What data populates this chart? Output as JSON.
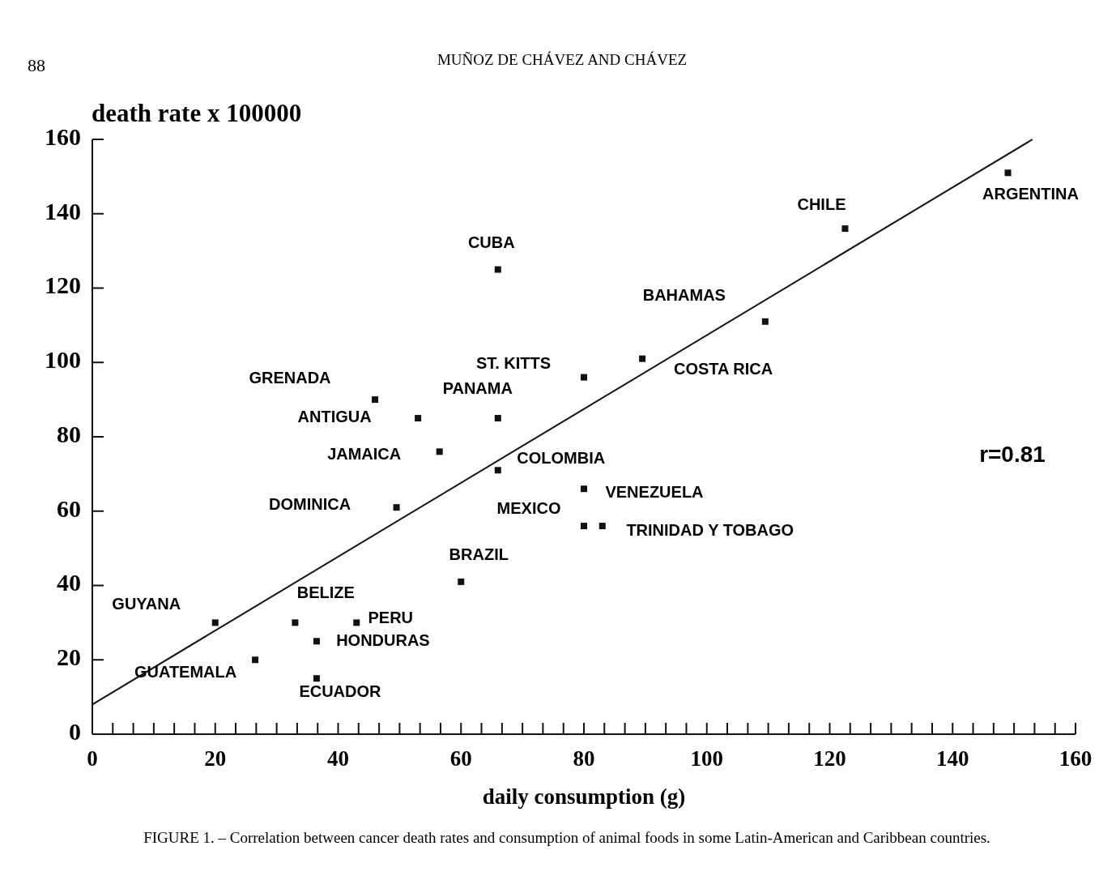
{
  "chart_data": {
    "type": "scatter",
    "xlabel": "daily consumption (g)",
    "ylabel": "death rate x 100000",
    "marker": "square",
    "xlim": [
      0,
      160
    ],
    "ylim": [
      0,
      160
    ],
    "xticks": [
      0,
      {
        "value": 3.33,
        "label": null
      },
      {
        "value": 6.67,
        "label": null
      },
      {
        "value": 10,
        "label": null
      },
      {
        "value": 13.33,
        "label": null
      },
      {
        "value": 16.67,
        "label": null
      },
      20,
      {
        "value": 23.33,
        "label": null
      },
      {
        "value": 26.67,
        "label": null
      },
      {
        "value": 30,
        "label": null
      },
      {
        "value": 33.33,
        "label": null
      },
      {
        "value": 36.67,
        "label": null
      },
      40,
      {
        "value": 43.33,
        "label": null
      },
      {
        "value": 46.67,
        "label": null
      },
      {
        "value": 50,
        "label": null
      },
      {
        "value": 53.33,
        "label": null
      },
      {
        "value": 56.67,
        "label": null
      },
      60,
      {
        "value": 63.33,
        "label": null
      },
      {
        "value": 66.67,
        "label": null
      },
      {
        "value": 70,
        "label": null
      },
      {
        "value": 73.33,
        "label": null
      },
      {
        "value": 76.67,
        "label": null
      },
      80,
      {
        "value": 83.33,
        "label": null
      },
      {
        "value": 86.67,
        "label": null
      },
      {
        "value": 90,
        "label": null
      },
      {
        "value": 93.33,
        "label": null
      },
      {
        "value": 96.67,
        "label": null
      },
      100,
      {
        "value": 103.33,
        "label": null
      },
      {
        "value": 106.67,
        "label": null
      },
      {
        "value": 110,
        "label": null
      },
      {
        "value": 113.33,
        "label": null
      },
      {
        "value": 116.67,
        "label": null
      },
      120,
      {
        "value": 123.33,
        "label": null
      },
      {
        "value": 126.67,
        "label": null
      },
      {
        "value": 130,
        "label": null
      },
      {
        "value": 133.33,
        "label": null
      },
      {
        "value": 136.67,
        "label": null
      },
      140,
      {
        "value": 143.33,
        "label": null
      },
      {
        "value": 146.67,
        "label": null
      },
      {
        "value": 150,
        "label": null
      },
      {
        "value": 153.33,
        "label": null
      },
      {
        "value": 156.67,
        "label": null
      },
      160
    ],
    "yticks": [
      0,
      20,
      40,
      60,
      80,
      100,
      120,
      140,
      160
    ],
    "series": [
      {
        "color": "#111111",
        "x": [
          20,
          26.5,
          33,
          36.5,
          36.5,
          43,
          49.5,
          46,
          53,
          56.5,
          60,
          66,
          66,
          66,
          80,
          80,
          80,
          83,
          89.5,
          109.5,
          122.5,
          149
        ],
        "values": [
          30,
          20,
          30,
          25,
          15,
          30,
          61,
          90,
          85,
          76,
          41,
          125,
          85,
          71,
          96,
          66,
          56,
          56,
          101,
          111,
          136,
          151
        ]
      },
      {
        "type": "line",
        "marker": "none",
        "color": "#111111",
        "x": [
          0,
          153
        ],
        "values": [
          8,
          160
        ]
      }
    ],
    "annotations": [
      "88",
      "MUÑOZ DE CHÁVEZ AND CHÁVEZ",
      "r=0.81",
      "FIGURE 1. – Correlation between cancer death rates and consumption of animal foods in some Latin-American and Caribbean countries.",
      {
        "text": "GUYANA",
        "x": 20,
        "y": 30
      },
      {
        "text": "GUATEMALA",
        "x": 26.5,
        "y": 20
      },
      {
        "text": "BELIZE",
        "x": 33,
        "y": 30
      },
      {
        "text": "HONDURAS",
        "x": 36.5,
        "y": 25
      },
      {
        "text": "ECUADOR",
        "x": 36.5,
        "y": 15
      },
      {
        "text": "PERU",
        "x": 43,
        "y": 30
      },
      {
        "text": "DOMINICA",
        "x": 49.5,
        "y": 61
      },
      {
        "text": "GRENADA",
        "x": 46,
        "y": 90
      },
      {
        "text": "ANTIGUA",
        "x": 53,
        "y": 85
      },
      {
        "text": "JAMAICA",
        "x": 56.5,
        "y": 76
      },
      {
        "text": "BRAZIL",
        "x": 60,
        "y": 41
      },
      {
        "text": "CUBA",
        "x": 66,
        "y": 125
      },
      {
        "text": "PANAMA",
        "x": 66,
        "y": 85
      },
      {
        "text": "COLOMBIA",
        "x": 66,
        "y": 71
      },
      {
        "text": "ST. KITTS",
        "x": 80,
        "y": 96
      },
      {
        "text": "VENEZUELA",
        "x": 80,
        "y": 66
      },
      {
        "text": "MEXICO",
        "x": 80,
        "y": 56
      },
      {
        "text": "TRINIDAD Y TOBAGO",
        "x": 83,
        "y": 56
      },
      {
        "text": "COSTA RICA",
        "x": 89.5,
        "y": 101
      },
      {
        "text": "BAHAMAS",
        "x": 109.5,
        "y": 111
      },
      {
        "text": "CHILE",
        "x": 122.5,
        "y": 136
      },
      {
        "text": "ARGENTINA",
        "x": 149,
        "y": 151
      }
    ]
  }
}
